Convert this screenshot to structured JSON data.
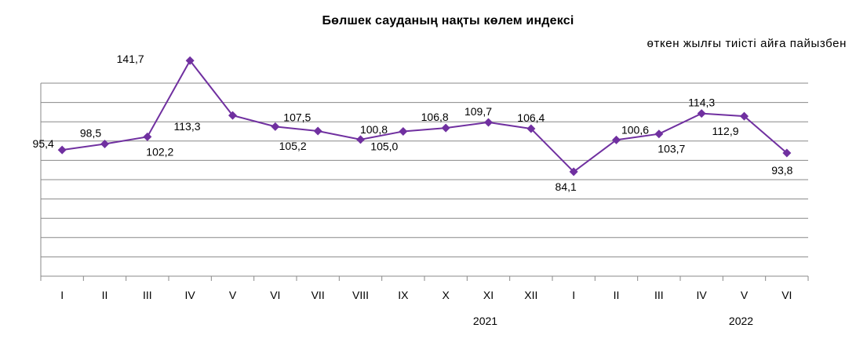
{
  "chart_data": {
    "type": "line",
    "title": "Бөлшек сауданың нақты көлем индексі",
    "subtitle": "өткен жылғы тиісті айға пайызбен",
    "categories": [
      "I",
      "II",
      "III",
      "IV",
      "V",
      "VI",
      "VII",
      "VIII",
      "IX",
      "X",
      "XI",
      "XII",
      "I",
      "II",
      "III",
      "IV",
      "V",
      "VI"
    ],
    "year_labels": [
      {
        "label": "2021",
        "category_index": 10
      },
      {
        "label": "2022",
        "category_index": 16
      }
    ],
    "series": [
      {
        "values": [
          95.4,
          98.5,
          102.2,
          141.7,
          113.3,
          107.5,
          105.2,
          100.8,
          105.0,
          106.8,
          109.7,
          106.4,
          84.1,
          100.6,
          103.7,
          114.3,
          112.9,
          93.8
        ],
        "labels": [
          "95,4",
          "98,5",
          "102,2",
          "141,7",
          "113,3",
          "107,5",
          "105,2",
          "100,8",
          "105,0",
          "106,8",
          "109,7",
          "106,4",
          "84,1",
          "100,6",
          "103,7",
          "114,3",
          "112,9",
          "93,8"
        ],
        "color": "#7030A0"
      }
    ],
    "ylim": [
      30,
      130
    ],
    "grid": true,
    "legend": "none"
  }
}
